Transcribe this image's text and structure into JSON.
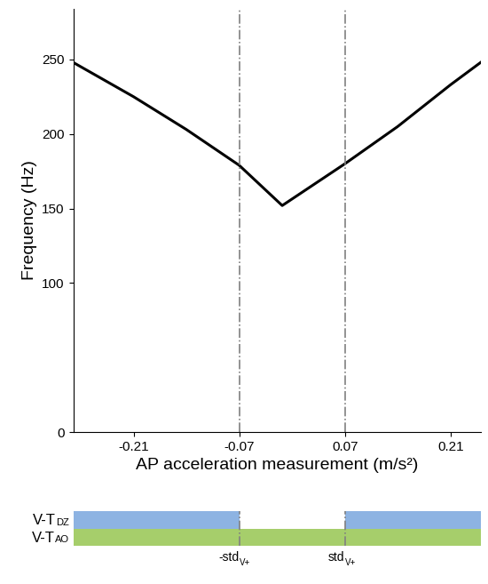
{
  "chart_data": {
    "type": "line",
    "x_label": "AP acceleration measurement (m/s²)",
    "y_label": "Frequency (Hz)",
    "x": [
      -0.29,
      -0.21,
      -0.14,
      -0.07,
      -0.013,
      0.07,
      0.14,
      0.21,
      0.25
    ],
    "values": [
      248,
      225,
      203,
      179,
      152,
      180,
      205,
      233,
      248
    ],
    "color": "#000000",
    "xlim": [
      -0.29,
      0.25
    ],
    "xticks": [
      -0.21,
      -0.07,
      0.07,
      0.21
    ],
    "ylim": [
      0,
      284
    ],
    "yticks": [
      0,
      100,
      150,
      200,
      250
    ],
    "grid": false,
    "thresholds": [
      {
        "value": -0.07,
        "label": "-std",
        "sub": "V+"
      },
      {
        "value": 0.07,
        "label": "std",
        "sub": "V+"
      }
    ],
    "bands": [
      {
        "name": "V-T",
        "sub": "DZ",
        "color": "#8db3e2",
        "segments": [
          [
            -0.29,
            -0.07
          ],
          [
            0.07,
            0.25
          ]
        ]
      },
      {
        "name": "V-T",
        "sub": "AO",
        "color": "#a6ce6b",
        "segments": [
          [
            -0.29,
            0.25
          ]
        ]
      }
    ]
  }
}
